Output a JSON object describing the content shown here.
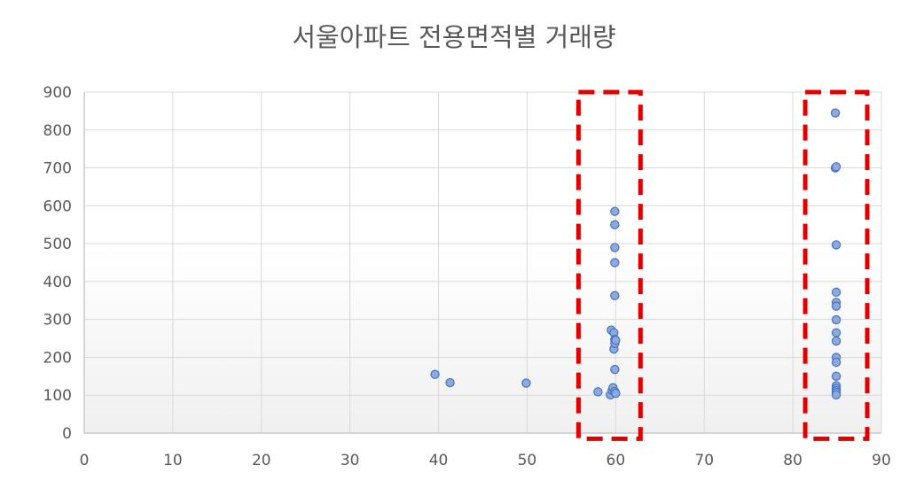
{
  "chart_data": {
    "type": "scatter",
    "title": "서울아파트 전용면적별 거래량",
    "xlabel": "",
    "ylabel": "",
    "xlim": [
      0,
      90
    ],
    "ylim": [
      0,
      900
    ],
    "x_ticks": [
      0,
      10,
      20,
      30,
      40,
      50,
      60,
      70,
      80,
      90
    ],
    "y_ticks": [
      0,
      100,
      200,
      300,
      400,
      500,
      600,
      700,
      800,
      900
    ],
    "grid": true,
    "legend": "none",
    "colors": {
      "marker_fill": "#8ea9db",
      "marker_stroke": "#4472c4",
      "highlight_box": "#e00000",
      "grid": "#d9d9d9",
      "plot_gradient_bottom": "#f2f2f2"
    },
    "series": [
      {
        "points": [
          [
            39.6,
            155
          ],
          [
            41.3,
            133
          ],
          [
            49.9,
            132
          ],
          [
            58.0,
            109
          ],
          [
            59.4,
            101
          ],
          [
            59.5,
            272
          ],
          [
            59.6,
            113
          ],
          [
            59.7,
            120
          ],
          [
            59.8,
            265
          ],
          [
            59.8,
            222
          ],
          [
            59.9,
            247
          ],
          [
            59.9,
            585
          ],
          [
            59.9,
            168
          ],
          [
            59.9,
            110
          ],
          [
            59.9,
            237
          ],
          [
            59.9,
            450
          ],
          [
            59.9,
            363
          ],
          [
            59.9,
            490
          ],
          [
            59.9,
            550
          ],
          [
            60.0,
            245
          ],
          [
            60.0,
            105
          ],
          [
            84.8,
            845
          ],
          [
            84.8,
            700
          ],
          [
            84.9,
            703
          ],
          [
            84.9,
            497
          ],
          [
            84.9,
            372
          ],
          [
            84.9,
            345
          ],
          [
            84.9,
            335
          ],
          [
            84.9,
            299
          ],
          [
            84.9,
            265
          ],
          [
            84.9,
            243
          ],
          [
            84.9,
            200
          ],
          [
            84.9,
            187
          ],
          [
            84.9,
            150
          ],
          [
            84.9,
            125
          ],
          [
            84.9,
            118
          ],
          [
            84.9,
            112
          ],
          [
            84.9,
            107
          ],
          [
            84.9,
            101
          ]
        ]
      }
    ],
    "highlight_regions": [
      {
        "x_range": [
          55.8,
          62.8
        ],
        "y_range": [
          -15,
          900
        ]
      },
      {
        "x_range": [
          81.4,
          88.4
        ],
        "y_range": [
          -15,
          900
        ]
      }
    ]
  }
}
